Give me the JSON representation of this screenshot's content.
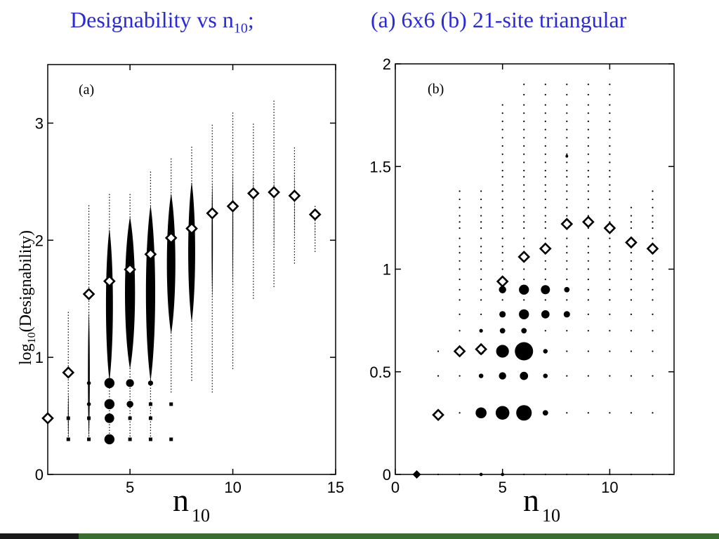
{
  "title": {
    "left_text": "Designability vs n",
    "left_sub": "10",
    "left_suffix": ";",
    "right_text": "(a) 6x6 (b) 21-site triangular"
  },
  "colors": {
    "title": "#2b2bd6",
    "footer": "#3a6e2f",
    "marks": "#000000"
  },
  "chart_data": [
    {
      "type": "scatter",
      "panel_label": "(a)",
      "ylabel_main": "log",
      "ylabel_sub": "10",
      "ylabel_rest": "(Designability)",
      "xlabel_main": "n",
      "xlabel_sub": "10",
      "xlim": [
        1,
        15
      ],
      "ylim": [
        0,
        3.5
      ],
      "xticks": [
        5,
        10,
        15
      ],
      "yticks": [
        0,
        1,
        2,
        3
      ],
      "grid": false,
      "series": [
        {
          "values": [
            {
              "x": 1,
              "y": 0.48
            },
            {
              "x": 2,
              "y": 0.87
            },
            {
              "x": 3,
              "y": 1.54
            },
            {
              "x": 4,
              "y": 1.65
            },
            {
              "x": 5,
              "y": 1.75
            },
            {
              "x": 6,
              "y": 1.88
            },
            {
              "x": 7,
              "y": 2.02
            },
            {
              "x": 8,
              "y": 2.1
            },
            {
              "x": 9,
              "y": 2.23
            },
            {
              "x": 10,
              "y": 2.29
            },
            {
              "x": 11,
              "y": 2.4
            },
            {
              "x": 12,
              "y": 2.41
            },
            {
              "x": 13,
              "y": 2.38
            },
            {
              "x": 14,
              "y": 2.22
            }
          ]
        }
      ],
      "distribution_columns": [
        {
          "x": 2,
          "ymin": 0.3,
          "ymax": 1.4,
          "bulk_min": 0.3,
          "bulk_max": 0.7,
          "bulk_width": 0.05
        },
        {
          "x": 3,
          "ymin": 0.3,
          "ymax": 2.3,
          "bulk_min": 0.3,
          "bulk_max": 1.4,
          "bulk_width": 0.12
        },
        {
          "x": 4,
          "ymin": 0.3,
          "ymax": 2.4,
          "bulk_min": 0.8,
          "bulk_max": 2.1,
          "bulk_width": 0.45
        },
        {
          "x": 5,
          "ymin": 0.3,
          "ymax": 2.4,
          "bulk_min": 0.9,
          "bulk_max": 2.2,
          "bulk_width": 0.65
        },
        {
          "x": 6,
          "ymin": 0.3,
          "ymax": 2.6,
          "bulk_min": 0.8,
          "bulk_max": 2.3,
          "bulk_width": 0.6
        },
        {
          "x": 7,
          "ymin": 0.7,
          "ymax": 2.7,
          "bulk_min": 1.2,
          "bulk_max": 2.4,
          "bulk_width": 0.55
        },
        {
          "x": 8,
          "ymin": 0.8,
          "ymax": 2.8,
          "bulk_min": 1.3,
          "bulk_max": 2.5,
          "bulk_width": 0.45
        },
        {
          "x": 9,
          "ymin": 0.7,
          "ymax": 3.0,
          "bulk_min": 1.5,
          "bulk_max": 2.5,
          "bulk_width": 0.08
        },
        {
          "x": 10,
          "ymin": 0.9,
          "ymax": 3.1,
          "bulk_min": 1.6,
          "bulk_max": 2.6,
          "bulk_width": 0.05
        },
        {
          "x": 11,
          "ymin": 1.5,
          "ymax": 3.0,
          "bulk_min": 1.9,
          "bulk_max": 2.6,
          "bulk_width": 0.03
        },
        {
          "x": 12,
          "ymin": 1.6,
          "ymax": 3.2,
          "bulk_min": 1.9,
          "bulk_max": 2.6,
          "bulk_width": 0.02
        },
        {
          "x": 13,
          "ymin": 1.8,
          "ymax": 2.8,
          "bulk_min": 2.0,
          "bulk_max": 2.6,
          "bulk_width": 0.02
        },
        {
          "x": 14,
          "ymin": 1.9,
          "ymax": 2.3,
          "bulk_min": 2.0,
          "bulk_max": 2.2,
          "bulk_width": 0.01
        }
      ],
      "large_points": [
        {
          "x": 4,
          "y": 0.3,
          "size": 0.9
        },
        {
          "x": 4,
          "y": 0.48,
          "size": 0.85
        },
        {
          "x": 4,
          "y": 0.6,
          "size": 0.9
        },
        {
          "x": 4,
          "y": 0.78,
          "size": 0.9
        },
        {
          "x": 5,
          "y": 0.6,
          "size": 0.6
        },
        {
          "x": 5,
          "y": 0.78,
          "size": 0.7
        },
        {
          "x": 3,
          "y": 0.6,
          "size": 0.35
        },
        {
          "x": 3,
          "y": 0.78,
          "size": 0.35
        },
        {
          "x": 6,
          "y": 0.78,
          "size": 0.45
        }
      ],
      "small_points": [
        {
          "x": 2,
          "y": 0.3
        },
        {
          "x": 3,
          "y": 0.3
        },
        {
          "x": 5,
          "y": 0.3
        },
        {
          "x": 6,
          "y": 0.3
        },
        {
          "x": 7,
          "y": 0.3
        },
        {
          "x": 2,
          "y": 0.48
        },
        {
          "x": 3,
          "y": 0.48
        },
        {
          "x": 5,
          "y": 0.48
        },
        {
          "x": 6,
          "y": 0.48
        },
        {
          "x": 6,
          "y": 0.6
        },
        {
          "x": 7,
          "y": 0.6
        }
      ]
    },
    {
      "type": "scatter",
      "panel_label": "(b)",
      "xlabel_main": "n",
      "xlabel_sub": "10",
      "xlim": [
        0,
        13
      ],
      "ylim": [
        0,
        2
      ],
      "xticks": [
        0,
        5,
        10
      ],
      "yticks": [
        0,
        0.5,
        1,
        1.5,
        2
      ],
      "ytick_labels": [
        "0",
        "0.5",
        "1",
        "1.5",
        "2"
      ],
      "grid": false,
      "series": [
        {
          "values": [
            {
              "x": 1,
              "y": 0.0
            },
            {
              "x": 2,
              "y": 0.29
            },
            {
              "x": 3,
              "y": 0.6
            },
            {
              "x": 4,
              "y": 0.61
            },
            {
              "x": 5,
              "y": 0.94
            },
            {
              "x": 6,
              "y": 1.06
            },
            {
              "x": 7,
              "y": 1.1
            },
            {
              "x": 8,
              "y": 1.22
            },
            {
              "x": 9,
              "y": 1.23
            },
            {
              "x": 10,
              "y": 1.2
            },
            {
              "x": 11,
              "y": 1.13
            },
            {
              "x": 12,
              "y": 1.1
            }
          ]
        }
      ],
      "grid_rows": [
        0.0,
        0.3,
        0.48,
        0.6,
        0.7,
        0.78,
        0.85,
        0.9,
        0.95,
        1.0,
        1.04,
        1.08,
        1.11,
        1.15,
        1.2,
        1.23,
        1.26,
        1.3,
        1.34,
        1.38,
        1.41,
        1.45,
        1.48,
        1.52,
        1.56,
        1.6,
        1.64,
        1.68,
        1.72,
        1.76,
        1.8,
        1.85,
        1.9
      ],
      "column_ranges": [
        {
          "x": 1,
          "ymax": 0.0
        },
        {
          "x": 2,
          "ymax": 0.6
        },
        {
          "x": 3,
          "ymax": 1.4
        },
        {
          "x": 4,
          "ymax": 1.4
        },
        {
          "x": 5,
          "ymax": 1.8
        },
        {
          "x": 6,
          "ymax": 1.9
        },
        {
          "x": 7,
          "ymax": 1.9
        },
        {
          "x": 8,
          "ymax": 1.9
        },
        {
          "x": 9,
          "ymax": 1.9
        },
        {
          "x": 10,
          "ymax": 1.9
        },
        {
          "x": 11,
          "ymax": 1.3
        },
        {
          "x": 12,
          "ymax": 1.4
        }
      ],
      "large_points": [
        {
          "x": 6,
          "y": 0.6,
          "size": 1.0
        },
        {
          "x": 6,
          "y": 0.3,
          "size": 0.85
        },
        {
          "x": 5,
          "y": 0.3,
          "size": 0.75
        },
        {
          "x": 4,
          "y": 0.3,
          "size": 0.6
        },
        {
          "x": 5,
          "y": 0.6,
          "size": 0.7
        },
        {
          "x": 4,
          "y": 0.6,
          "size": 0.35
        },
        {
          "x": 5,
          "y": 0.48,
          "size": 0.4
        },
        {
          "x": 6,
          "y": 0.48,
          "size": 0.45
        },
        {
          "x": 6,
          "y": 0.78,
          "size": 0.55
        },
        {
          "x": 6,
          "y": 0.9,
          "size": 0.55
        },
        {
          "x": 7,
          "y": 0.9,
          "size": 0.5
        },
        {
          "x": 7,
          "y": 0.78,
          "size": 0.45
        },
        {
          "x": 5,
          "y": 0.78,
          "size": 0.35
        },
        {
          "x": 5,
          "y": 0.9,
          "size": 0.4
        },
        {
          "x": 7,
          "y": 0.3,
          "size": 0.3
        },
        {
          "x": 8,
          "y": 0.78,
          "size": 0.35
        },
        {
          "x": 8,
          "y": 0.9,
          "size": 0.3
        },
        {
          "x": 7,
          "y": 0.6,
          "size": 0.25
        },
        {
          "x": 7,
          "y": 0.48,
          "size": 0.25
        },
        {
          "x": 6,
          "y": 0.7,
          "size": 0.3
        },
        {
          "x": 5,
          "y": 0.7,
          "size": 0.3
        },
        {
          "x": 4,
          "y": 0.48,
          "size": 0.25
        },
        {
          "x": 4,
          "y": 0.7,
          "size": 0.2
        },
        {
          "x": 8,
          "y": 1.55,
          "size": 0.15
        },
        {
          "x": 4,
          "y": 0.0,
          "size": 0.18
        },
        {
          "x": 5,
          "y": 0.0,
          "size": 0.18
        }
      ]
    }
  ]
}
